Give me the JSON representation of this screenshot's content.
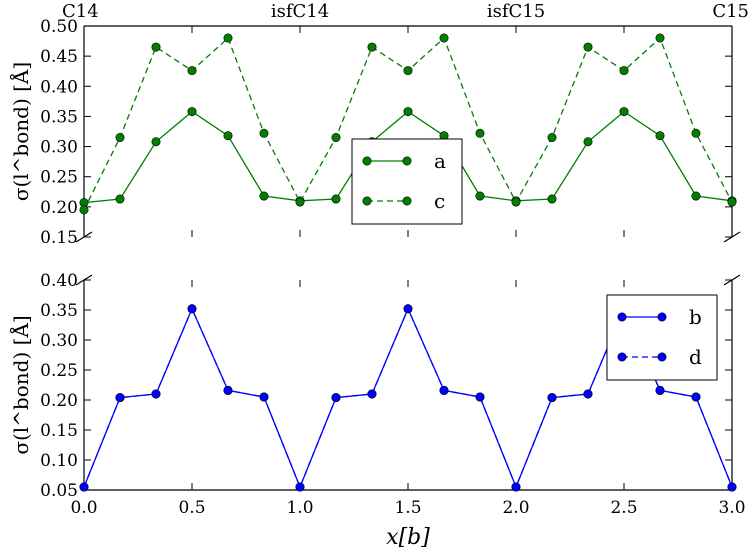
{
  "chart_data": [
    {
      "type": "line",
      "ylabel": "σ(l^bond) [Å]",
      "ylim": [
        0.15,
        0.5
      ],
      "yticks": [
        "0.15",
        "0.20",
        "0.25",
        "0.30",
        "0.35",
        "0.40",
        "0.45",
        "0.50"
      ],
      "top_labels": [
        {
          "x": 0.0,
          "label": "C14"
        },
        {
          "x": 1.0,
          "label": "isfC14"
        },
        {
          "x": 2.0,
          "label": "isfC15"
        },
        {
          "x": 3.0,
          "label": "C15"
        }
      ],
      "legend": "center",
      "x": [
        0,
        0.1667,
        0.3333,
        0.5,
        0.6667,
        0.8333,
        1.0,
        1.1667,
        1.3333,
        1.5,
        1.6667,
        1.8333,
        2.0,
        2.1667,
        2.3333,
        2.5,
        2.6667,
        2.8333,
        3.0
      ],
      "series": [
        {
          "name": "a",
          "style": "solid",
          "color": "#007f00",
          "values": [
            0.207,
            0.213,
            0.308,
            0.358,
            0.318,
            0.218,
            0.21,
            0.213,
            0.308,
            0.358,
            0.318,
            0.218,
            0.21,
            0.213,
            0.308,
            0.358,
            0.318,
            0.218,
            0.21
          ]
        },
        {
          "name": "c",
          "style": "dashed",
          "color": "#007f00",
          "values": [
            0.195,
            0.315,
            0.465,
            0.426,
            0.48,
            0.322,
            0.208,
            0.315,
            0.465,
            0.426,
            0.48,
            0.322,
            0.208,
            0.315,
            0.465,
            0.426,
            0.48,
            0.322,
            0.208
          ]
        }
      ]
    },
    {
      "type": "line",
      "ylabel": "σ(l^bond) [Å]",
      "xlabel": "x[b]",
      "ylim": [
        0.05,
        0.4
      ],
      "xlim": [
        0.0,
        3.0
      ],
      "yticks": [
        "0.05",
        "0.10",
        "0.15",
        "0.20",
        "0.25",
        "0.30",
        "0.35",
        "0.40"
      ],
      "xticks": [
        "0.0",
        "0.5",
        "1.0",
        "1.5",
        "2.0",
        "2.5",
        "3.0"
      ],
      "legend": "top-right",
      "x": [
        0,
        0.1667,
        0.3333,
        0.5,
        0.6667,
        0.8333,
        1.0,
        1.1667,
        1.3333,
        1.5,
        1.6667,
        1.8333,
        2.0,
        2.1667,
        2.3333,
        2.5,
        2.6667,
        2.8333,
        3.0
      ],
      "series": [
        {
          "name": "b",
          "style": "solid",
          "color": "#0000ff",
          "values": [
            0.055,
            0.204,
            0.21,
            0.352,
            0.216,
            0.205,
            0.055,
            0.204,
            0.21,
            0.352,
            0.216,
            0.205,
            0.055,
            0.204,
            0.21,
            0.352,
            0.216,
            0.205,
            0.055
          ]
        },
        {
          "name": "d",
          "style": "dashed",
          "color": "#0000ff",
          "values": [
            0.055,
            0.204,
            0.21,
            0.352,
            0.216,
            0.205,
            0.055,
            0.204,
            0.21,
            0.352,
            0.216,
            0.205,
            0.055,
            0.204,
            0.21,
            0.352,
            0.216,
            0.205,
            0.055
          ]
        }
      ]
    }
  ]
}
